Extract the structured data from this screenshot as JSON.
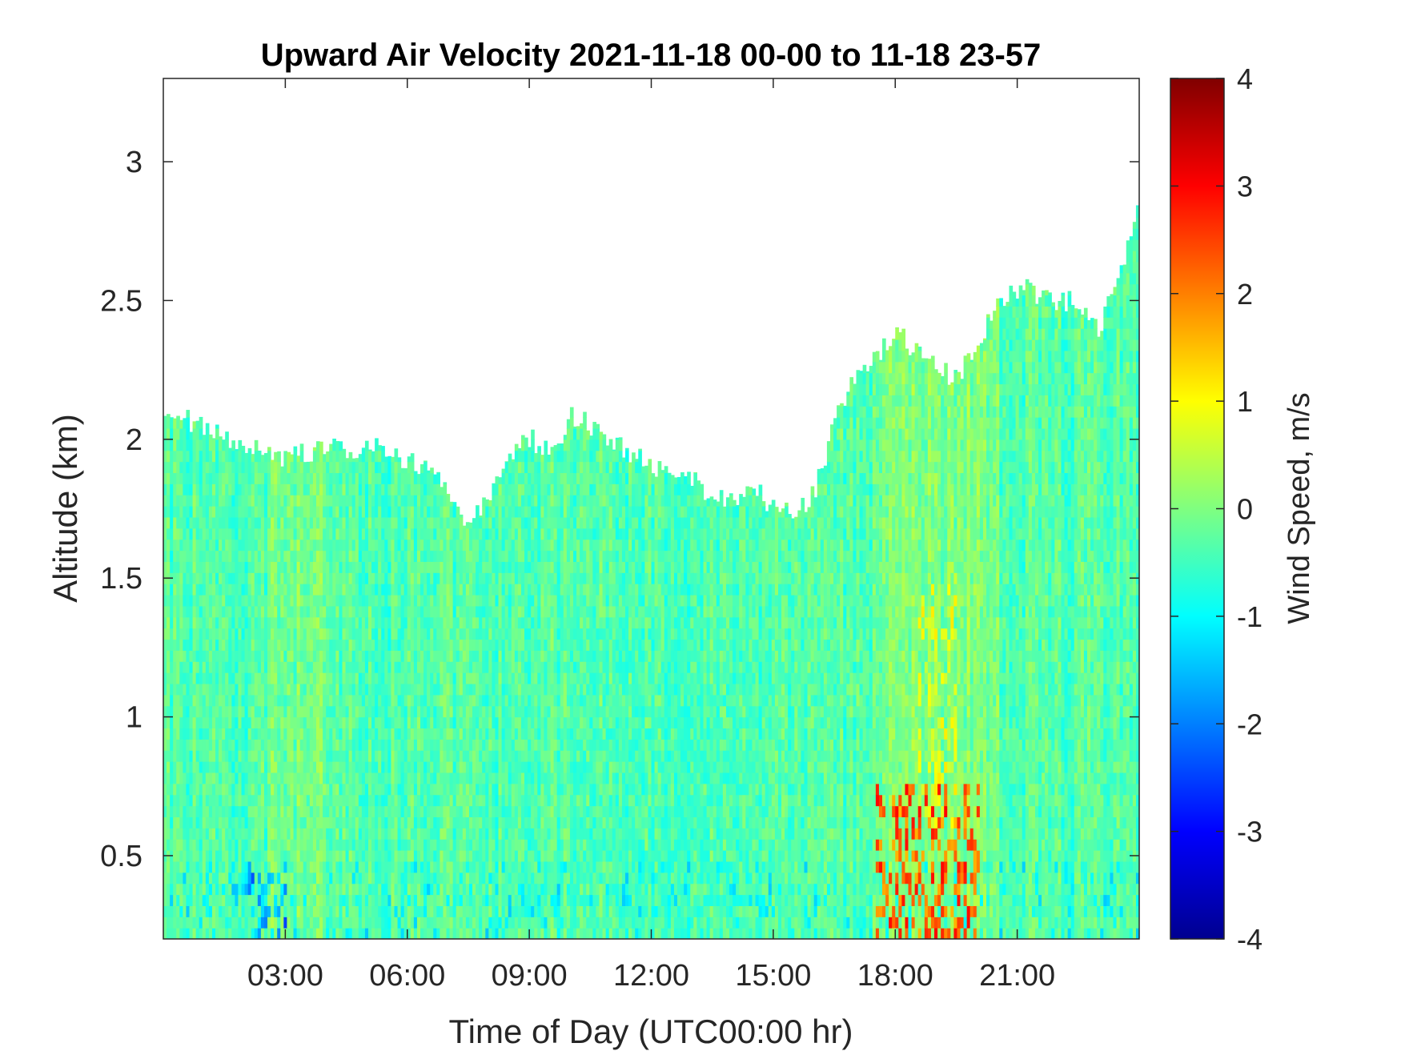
{
  "chart_data": {
    "type": "heatmap",
    "title": "Upward Air Velocity 2021-11-18 00-00 to 11-18 23-57",
    "xlabel": "Time of Day (UTC00:00 hr)",
    "ylabel": "Altitude (km)",
    "colorbar_label": "Wind Speed, m/s",
    "xlim": [
      0,
      24
    ],
    "ylim": [
      0.2,
      3.3
    ],
    "clim": [
      -4,
      4
    ],
    "colormap": "jet",
    "x_ticks": [
      {
        "value": 3,
        "label": "03:00"
      },
      {
        "value": 6,
        "label": "06:00"
      },
      {
        "value": 9,
        "label": "09:00"
      },
      {
        "value": 12,
        "label": "12:00"
      },
      {
        "value": 15,
        "label": "15:00"
      },
      {
        "value": 18,
        "label": "18:00"
      },
      {
        "value": 21,
        "label": "21:00"
      }
    ],
    "y_ticks": [
      {
        "value": 0.5,
        "label": "0.5"
      },
      {
        "value": 1,
        "label": "1"
      },
      {
        "value": 1.5,
        "label": "1.5"
      },
      {
        "value": 2,
        "label": "2"
      },
      {
        "value": 2.5,
        "label": "2.5"
      },
      {
        "value": 3,
        "label": "3"
      }
    ],
    "colorbar_ticks": [
      {
        "value": 4,
        "label": "4"
      },
      {
        "value": 3,
        "label": "3"
      },
      {
        "value": 2,
        "label": "2"
      },
      {
        "value": 1,
        "label": "1"
      },
      {
        "value": 0,
        "label": "0"
      },
      {
        "value": -1,
        "label": "-1"
      },
      {
        "value": -2,
        "label": "-2"
      },
      {
        "value": -3,
        "label": "-3"
      },
      {
        "value": -4,
        "label": "-4"
      }
    ],
    "data_top_altitude_km": {
      "hours": [
        0,
        0.5,
        1,
        1.5,
        2,
        2.5,
        3,
        3.5,
        4,
        4.5,
        5,
        5.5,
        6,
        6.5,
        7,
        7.5,
        8,
        8.5,
        9,
        9.5,
        10,
        10.5,
        11,
        11.5,
        12,
        12.5,
        13,
        13.5,
        14,
        14.5,
        15,
        15.5,
        16,
        16.5,
        17,
        17.5,
        18,
        18.5,
        19,
        19.5,
        20,
        20.5,
        21,
        21.5,
        22,
        22.5,
        23,
        23.5,
        24
      ],
      "values": [
        2.1,
        2.08,
        2.03,
        2.0,
        1.98,
        1.95,
        1.93,
        1.95,
        1.97,
        1.96,
        1.98,
        1.96,
        1.92,
        1.88,
        1.8,
        1.68,
        1.82,
        1.95,
        2.0,
        1.95,
        2.08,
        2.05,
        2.0,
        1.95,
        1.9,
        1.85,
        1.85,
        1.78,
        1.8,
        1.82,
        1.75,
        1.72,
        1.82,
        2.08,
        2.22,
        2.3,
        2.38,
        2.32,
        2.25,
        2.22,
        2.35,
        2.5,
        2.55,
        2.52,
        2.5,
        2.5,
        2.4,
        2.6,
        2.9
      ]
    },
    "features": [
      {
        "hours": [
          17.5,
          20
        ],
        "altitude_km": [
          0.2,
          0.75
        ],
        "wind_speed_ms": [
          1.5,
          3
        ],
        "description": "strong updrafts near surface"
      },
      {
        "hours": [
          18.5,
          19.5
        ],
        "altitude_km": [
          0.6,
          1.5
        ],
        "wind_speed_ms": [
          0.5,
          1.2
        ]
      },
      {
        "hours": [
          2,
          3
        ],
        "altitude_km": [
          0.2,
          0.45
        ],
        "wind_speed_ms": [
          -2,
          -1
        ]
      },
      {
        "hours": [
          10,
          14.5
        ],
        "altitude_km": [
          0.3,
          1.3
        ],
        "wind_speed_ms": [
          -0.8,
          -0.4
        ]
      }
    ]
  }
}
